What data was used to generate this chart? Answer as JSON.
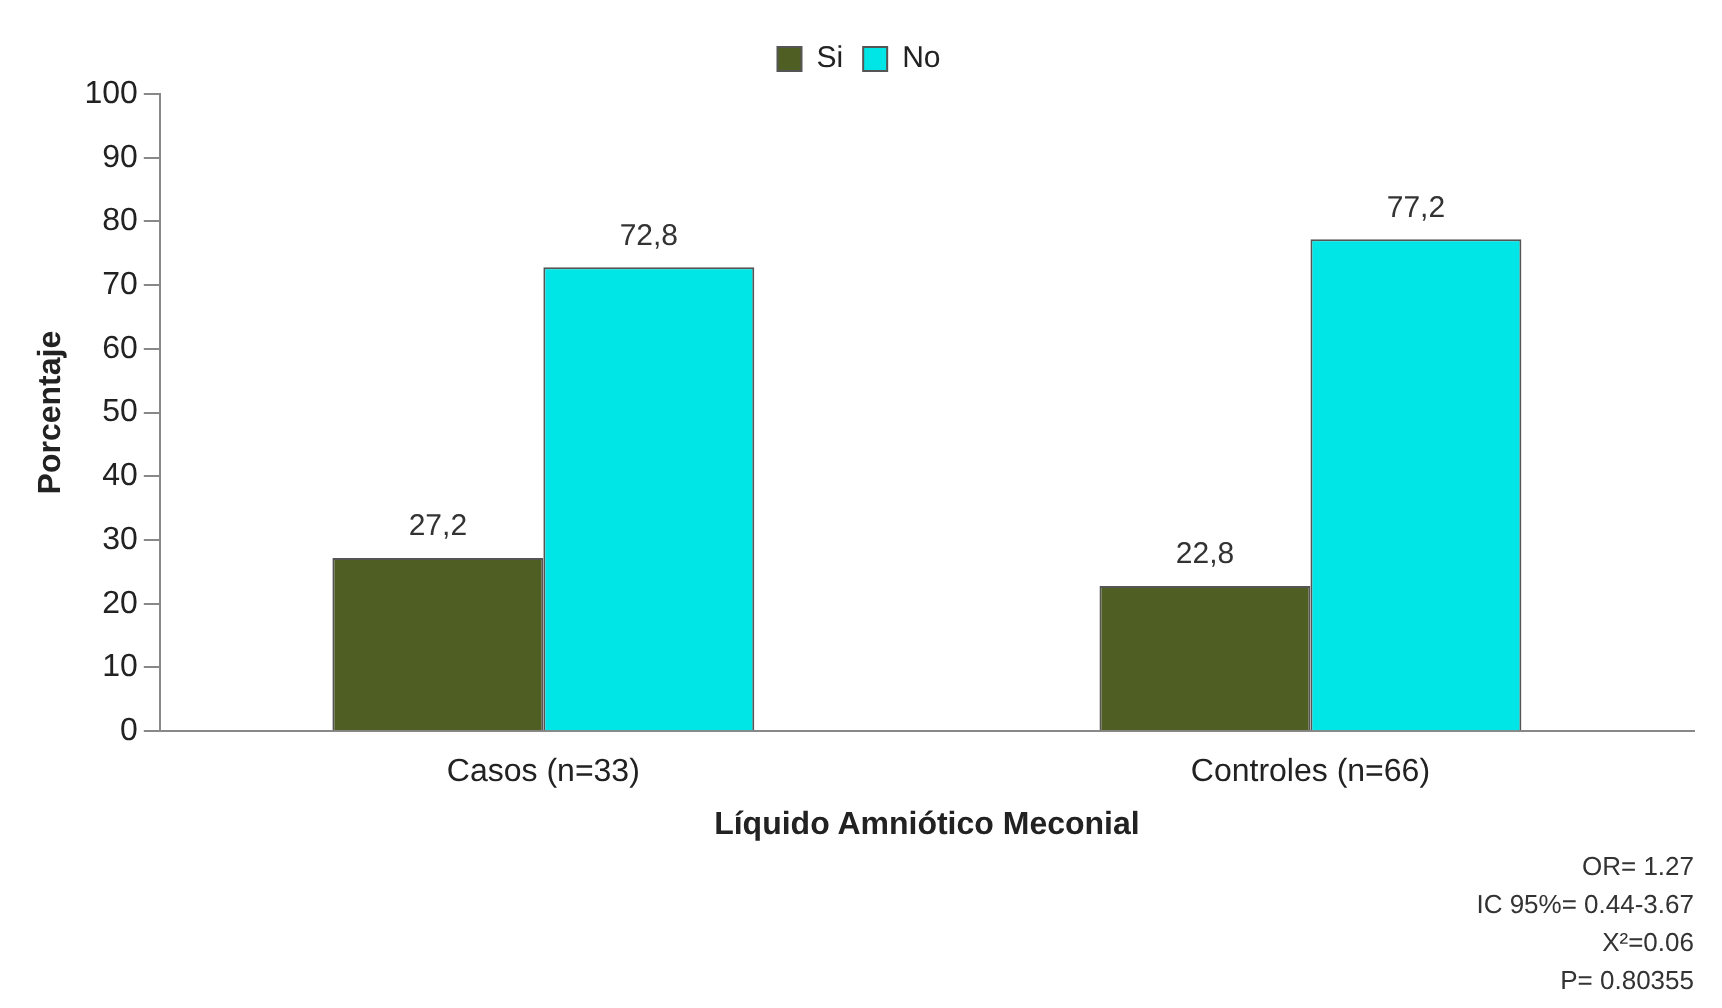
{
  "chart_data": {
    "type": "bar",
    "categories": [
      "Casos (n=33)",
      "Controles (n=66)"
    ],
    "series": [
      {
        "name": "Si",
        "color": "#4f5e23",
        "values": [
          27.2,
          22.8
        ],
        "value_labels": [
          "27,2",
          "22,8"
        ]
      },
      {
        "name": "No",
        "color": "#00e5e5",
        "values": [
          72.8,
          77.2
        ],
        "value_labels": [
          "72,8",
          "77,2"
        ]
      }
    ],
    "xlabel": "Líquido Amniótico Meconial",
    "ylabel": "Porcentaje",
    "ylim": [
      0,
      100
    ],
    "yticks": [
      0,
      10,
      20,
      30,
      40,
      50,
      60,
      70,
      80,
      90,
      100
    ],
    "grid": false,
    "legend": "top",
    "annotations": [
      "OR= 1.27",
      "IC 95%= 0.44-3.67",
      "X²=0.06",
      "P= 0.80355"
    ]
  }
}
